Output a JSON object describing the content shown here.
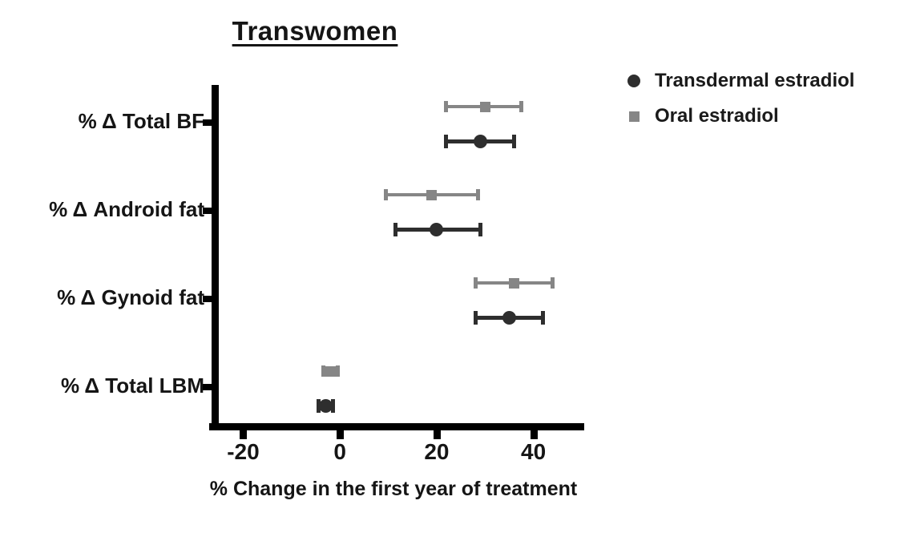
{
  "chart_data": {
    "type": "scatter",
    "subtype": "horizontal-dot-plot-with-error-bars",
    "title": "Transwomen",
    "xlabel": "% Change in the first year of treatment",
    "categories": [
      "% Δ Total BF",
      "% Δ Android fat",
      "% Δ Gynoid fat",
      "% Δ Total LBM"
    ],
    "xlim": [
      -26.7,
      50.5
    ],
    "xticks": [
      "-20",
      "0",
      "20",
      "40"
    ],
    "xtick_values": [
      -20,
      0,
      20,
      40
    ],
    "grid": false,
    "legend_position": "top-right",
    "axis_color": "#000000",
    "series": [
      {
        "name": "Transdermal estradiol",
        "marker": "circle",
        "color": "#2e2e2e",
        "values": [
          29,
          20,
          35,
          -3
        ],
        "ci_low": [
          22,
          11.5,
          28,
          -4.5
        ],
        "ci_high": [
          36,
          29,
          42,
          -1.5
        ]
      },
      {
        "name": "Oral estradiol",
        "marker": "square",
        "color": "#868686",
        "values": [
          30,
          19,
          36,
          -2
        ],
        "ci_low": [
          22,
          9.5,
          28,
          -3.5
        ],
        "ci_high": [
          37.5,
          28.5,
          44,
          -0.5
        ]
      }
    ]
  }
}
